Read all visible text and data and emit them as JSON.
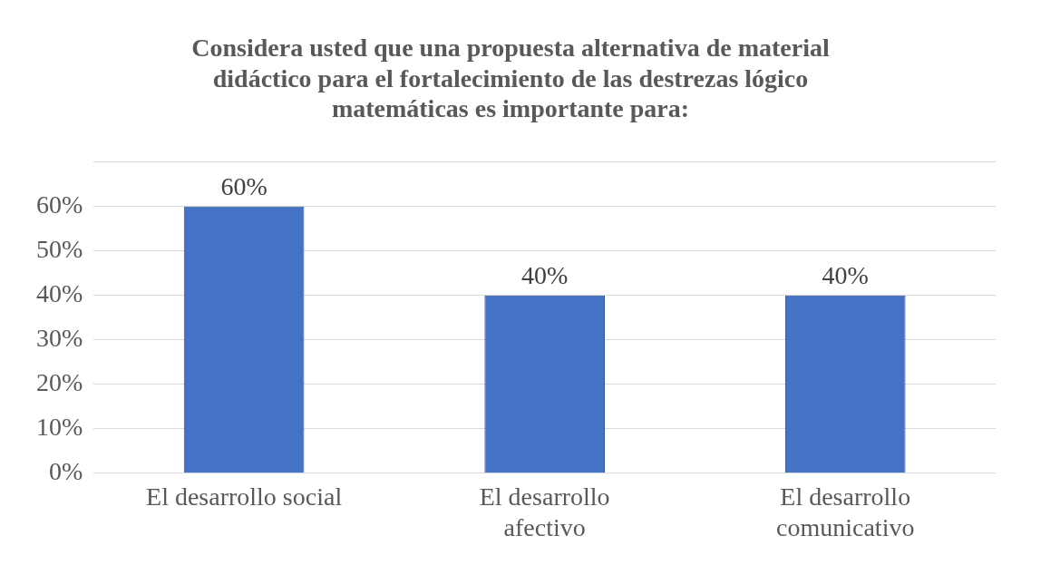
{
  "chart_data": {
    "type": "bar",
    "title": "Considera usted que una propuesta alternativa de material didáctico para el fortalecimiento de las destrezas lógico matemáticas es importante para:",
    "categories": [
      "El desarrollo social",
      "El desarrollo afectivo",
      "El desarrollo comunicativo"
    ],
    "values": [
      60,
      40,
      40
    ],
    "color": "#4472c4",
    "value_labels": [
      "60%",
      "40%",
      "40%"
    ],
    "ylim": [
      0,
      70
    ],
    "yticks": [
      {
        "value": 0,
        "label": "0%"
      },
      {
        "value": 10,
        "label": "10%"
      },
      {
        "value": 20,
        "label": "20%"
      },
      {
        "value": 30,
        "label": "30%"
      },
      {
        "value": 40,
        "label": "40%"
      },
      {
        "value": 50,
        "label": "50%"
      },
      {
        "value": 60,
        "label": "60%"
      },
      {
        "value": 70,
        "label": null
      }
    ],
    "grid": "y",
    "legend": false
  }
}
